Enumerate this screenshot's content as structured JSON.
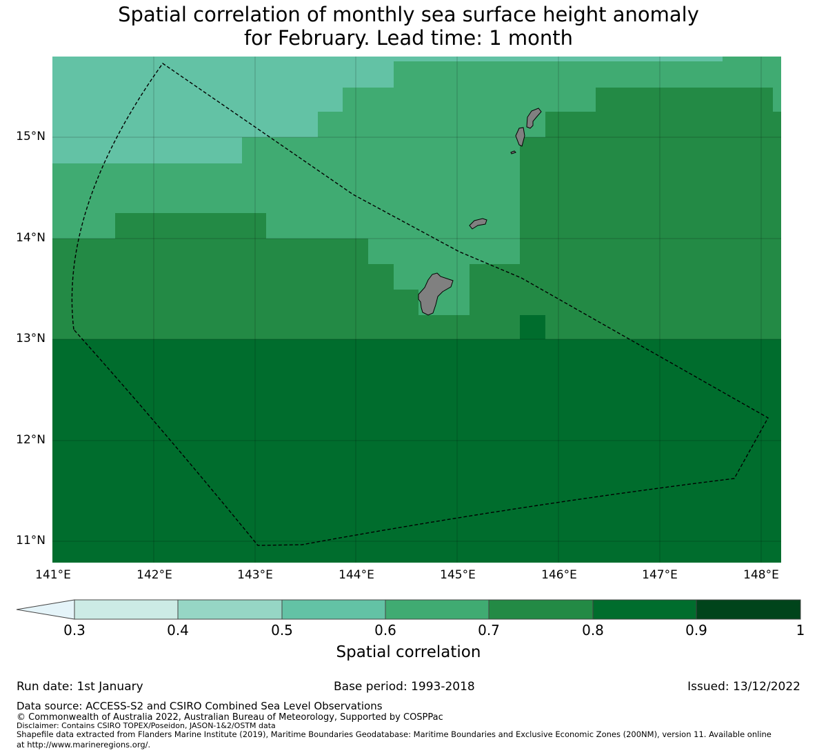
{
  "title": {
    "line1": "Spatial correlation of monthly sea surface height anomaly",
    "line2": "for February. Lead time: 1 month"
  },
  "map": {
    "lat_labels": [
      "15°N",
      "14°N",
      "13°N",
      "12°N",
      "11°N"
    ],
    "lon_labels": [
      "141°E",
      "142°E",
      "143°E",
      "144°E",
      "145°E",
      "146°E",
      "147°E",
      "148°E"
    ],
    "ocean_class_colors": {
      "0.5-0.6": "#63c2a5",
      "0.6-0.7": "#40ab72",
      "0.7-0.8": "#238a45",
      "0.8-0.9": "#006d2d"
    },
    "land_color": "#808080",
    "eez_boundary_style": "dashed black line"
  },
  "colorbar": {
    "label": "Spatial correlation",
    "ticks": [
      "0.3",
      "0.4",
      "0.5",
      "0.6",
      "0.7",
      "0.8",
      "0.9",
      "1"
    ],
    "under_color": "#e5f4f9",
    "colors": [
      "#ccebe5",
      "#96d6c5",
      "#63c2a5",
      "#40ab72",
      "#238a45",
      "#006d2d",
      "#00441b"
    ]
  },
  "info": {
    "run_date": "Run date: 1st January",
    "base_period": "Base period: 1993-2018",
    "issued": "Issued: 13/12/2022"
  },
  "footer": {
    "data_source": "Data source: ACCESS-S2 and CSIRO Combined Sea Level Observations",
    "copyright": "© Commonwealth of Australia 2022, Australian Bureau of Meteorology, Supported by COSPPac",
    "disclaimer": "Disclaimer: Contains CSIRO TOPEX/Poseidon, JASON-1&2/OSTM data",
    "shapefile_1": "Shapefile data extracted from Flanders Marine Institute (2019), Maritime Boundaries Geodatabase: Maritime Boundaries and Exclusive Economic Zones (200NM), version 11. Available online",
    "shapefile_2": "at http://www.marineregions.org/."
  }
}
